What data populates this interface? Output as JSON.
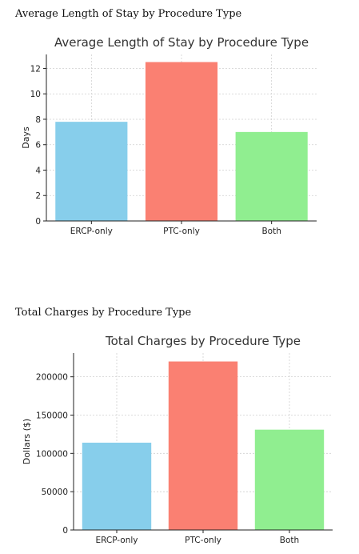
{
  "headings": {
    "los": "Average Length of Stay by Procedure Type",
    "charges": "Total Charges by Procedure Type"
  },
  "chart_data": [
    {
      "type": "bar",
      "title": "Average Length of Stay by Procedure Type",
      "xlabel": "",
      "ylabel": "Days",
      "categories": [
        "ERCP-only",
        "PTC-only",
        "Both"
      ],
      "values": [
        7.8,
        12.5,
        7.0
      ],
      "colors": [
        "#87ceeb",
        "#fa8072",
        "#90ee90"
      ],
      "ylim": [
        0,
        13.1
      ],
      "yticks": [
        0,
        2,
        4,
        6,
        8,
        10,
        12
      ],
      "grid": true
    },
    {
      "type": "bar",
      "title": "Total Charges by Procedure Type",
      "xlabel": "",
      "ylabel": "Dollars ($)",
      "categories": [
        "ERCP-only",
        "PTC-only",
        "Both"
      ],
      "values": [
        114000,
        220000,
        131000
      ],
      "colors": [
        "#87ceeb",
        "#fa8072",
        "#90ee90"
      ],
      "ylim": [
        0,
        231000
      ],
      "yticks": [
        0,
        50000,
        100000,
        150000,
        200000
      ],
      "grid": true
    }
  ]
}
